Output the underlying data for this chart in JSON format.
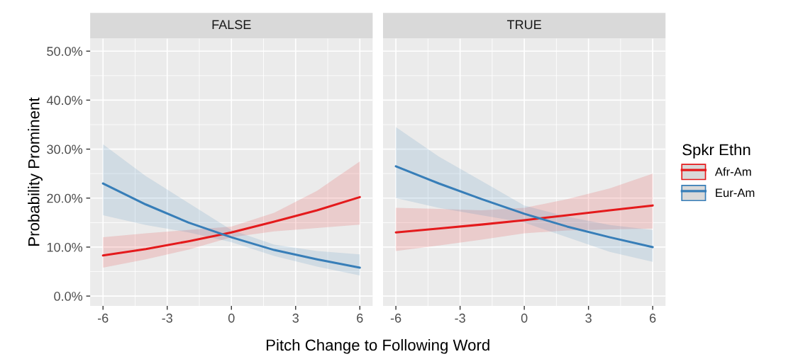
{
  "chart_data": [
    {
      "type": "line",
      "title": "FALSE",
      "xlabel": "Pitch Change to Following Word",
      "ylabel": "Probability Prominent",
      "xlim": [
        -6.6,
        6.6
      ],
      "xticks": [
        -6,
        -3,
        0,
        3,
        6
      ],
      "ylim": [
        -2,
        52.6
      ],
      "yticks": [
        {
          "value": 0,
          "label": "0.0%"
        },
        {
          "value": 10,
          "label": "10.0%"
        },
        {
          "value": 20,
          "label": "20.0%"
        },
        {
          "value": 30,
          "label": "30.0%"
        },
        {
          "value": 40,
          "label": "40.0%"
        },
        {
          "value": 50,
          "label": "50.0%"
        }
      ],
      "grid": true,
      "x": [
        -6,
        -4,
        -2,
        0,
        2,
        4,
        6
      ],
      "series": [
        {
          "color": "#e41a1c",
          "values": [
            8.3,
            9.6,
            11.2,
            13.0,
            15.2,
            17.5,
            20.2
          ],
          "lower": [
            5.8,
            7.5,
            9.5,
            12.0,
            13.2,
            13.9,
            14.6
          ],
          "upper": [
            12.0,
            12.8,
            13.5,
            14.2,
            17.0,
            21.5,
            27.5
          ]
        },
        {
          "color": "#377eb8",
          "values": [
            23.0,
            18.7,
            15.0,
            12.0,
            9.4,
            7.5,
            5.8
          ],
          "lower": [
            16.5,
            14.5,
            13.0,
            11.0,
            8.2,
            6.0,
            4.2
          ],
          "upper": [
            31.0,
            24.5,
            19.0,
            13.5,
            10.5,
            9.2,
            8.5
          ]
        }
      ]
    },
    {
      "type": "line",
      "title": "TRUE",
      "legend_title": "Spkr Ethn",
      "xlim": [
        -6.6,
        6.6
      ],
      "xticks": [
        -6,
        -3,
        0,
        3,
        6
      ],
      "ylim": [
        -2,
        52.6
      ],
      "yticks": [
        {
          "value": 0,
          "label": null
        },
        {
          "value": 10,
          "label": null
        },
        {
          "value": 20,
          "label": null
        },
        {
          "value": 30,
          "label": null
        },
        {
          "value": 40,
          "label": null
        },
        {
          "value": 50,
          "label": null
        }
      ],
      "grid": true,
      "legend": "right",
      "tick_labels": "x",
      "x": [
        -6,
        -4,
        -2,
        0,
        2,
        4,
        6
      ],
      "series": [
        {
          "name": "Afr-Am",
          "color": "#e41a1c",
          "values": [
            13.0,
            13.8,
            14.6,
            15.5,
            16.5,
            17.5,
            18.5
          ],
          "lower": [
            9.2,
            10.3,
            11.5,
            12.8,
            13.4,
            13.6,
            13.8
          ],
          "upper": [
            18.0,
            17.8,
            17.5,
            18.0,
            19.8,
            22.0,
            25.0
          ]
        },
        {
          "name": "Eur-Am",
          "color": "#377eb8",
          "values": [
            26.5,
            23.0,
            19.8,
            16.8,
            14.2,
            12.0,
            10.0
          ],
          "lower": [
            20.0,
            18.0,
            16.5,
            15.0,
            12.0,
            9.0,
            7.0
          ],
          "upper": [
            34.5,
            28.5,
            23.5,
            18.5,
            16.2,
            14.5,
            13.5
          ]
        }
      ]
    }
  ]
}
